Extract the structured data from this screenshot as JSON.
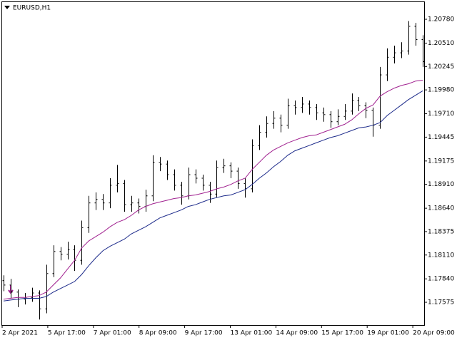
{
  "chart_data": {
    "type": "ohlc",
    "title": "EURUSD,H1",
    "ylim": [
      1.17317,
      1.20982
    ],
    "yticks": [
      {
        "value": 1.2078,
        "label": "1.20780"
      },
      {
        "value": 1.2051,
        "label": "1.20510"
      },
      1.20245,
      {
        "value": 1.1998,
        "label": "1.19980"
      },
      {
        "value": 1.1971,
        "label": "1.19710"
      },
      1.19445,
      1.19175,
      {
        "value": 1.1891,
        "label": "1.18910"
      },
      {
        "value": 1.1864,
        "label": "1.18640"
      },
      1.18375,
      {
        "value": 1.1811,
        "label": "1.18110"
      },
      {
        "value": 1.1784,
        "label": "1.17840"
      },
      1.17575
    ],
    "x_labels": [
      "2 Apr 2021",
      "5 Apr 17:00",
      "7 Apr 01:00",
      "8 Apr 09:00",
      "9 Apr 17:00",
      "13 Apr 01:00",
      "14 Apr 09:00",
      "15 Apr 17:00",
      "19 Apr 01:00",
      "20 Apr 09:00"
    ],
    "color": "#000000",
    "bars": [
      [
        1.1782,
        1.1788,
        1.177,
        1.1777
      ],
      [
        1.1777,
        1.1784,
        1.1762,
        1.1769
      ],
      [
        1.1769,
        1.1772,
        1.1752,
        1.1761
      ],
      [
        1.1761,
        1.1768,
        1.1755,
        1.1763
      ],
      [
        1.1763,
        1.1774,
        1.1758,
        1.1768
      ],
      [
        1.1768,
        1.1771,
        1.1738,
        1.175
      ],
      [
        1.175,
        1.18,
        1.1745,
        1.179
      ],
      [
        1.179,
        1.1822,
        1.1786,
        1.1815
      ],
      [
        1.1815,
        1.182,
        1.1805,
        1.1812
      ],
      [
        1.1812,
        1.1826,
        1.1806,
        1.1817
      ],
      [
        1.1817,
        1.1822,
        1.1793,
        1.1805
      ],
      [
        1.1805,
        1.185,
        1.18,
        1.1842
      ],
      [
        1.1842,
        1.1878,
        1.1836,
        1.187
      ],
      [
        1.187,
        1.1882,
        1.1862,
        1.1874
      ],
      [
        1.1874,
        1.188,
        1.1862,
        1.187
      ],
      [
        1.187,
        1.1898,
        1.1864,
        1.189
      ],
      [
        1.189,
        1.1913,
        1.1882,
        1.1892
      ],
      [
        1.1892,
        1.1896,
        1.186,
        1.1868
      ],
      [
        1.1868,
        1.1878,
        1.186,
        1.187
      ],
      [
        1.187,
        1.1875,
        1.1858,
        1.1866
      ],
      [
        1.1866,
        1.1885,
        1.186,
        1.1878
      ],
      [
        1.1878,
        1.1924,
        1.1872,
        1.1916
      ],
      [
        1.1916,
        1.1922,
        1.1906,
        1.1914
      ],
      [
        1.1914,
        1.1918,
        1.1896,
        1.1902
      ],
      [
        1.1902,
        1.1908,
        1.1884,
        1.189
      ],
      [
        1.189,
        1.1894,
        1.1868,
        1.1878
      ],
      [
        1.1878,
        1.191,
        1.1874,
        1.1902
      ],
      [
        1.1902,
        1.1908,
        1.1892,
        1.1898
      ],
      [
        1.1898,
        1.1902,
        1.1884,
        1.189
      ],
      [
        1.189,
        1.1894,
        1.187,
        1.188
      ],
      [
        1.188,
        1.1918,
        1.1876,
        1.191
      ],
      [
        1.191,
        1.192,
        1.1904,
        1.1912
      ],
      [
        1.1912,
        1.1916,
        1.1898,
        1.1906
      ],
      [
        1.1906,
        1.191,
        1.1886,
        1.1892
      ],
      [
        1.1892,
        1.1898,
        1.1876,
        1.1886
      ],
      [
        1.1886,
        1.1942,
        1.1882,
        1.1935
      ],
      [
        1.1935,
        1.1958,
        1.193,
        1.195
      ],
      [
        1.195,
        1.1968,
        1.1944,
        1.196
      ],
      [
        1.196,
        1.1974,
        1.1954,
        1.1966
      ],
      [
        1.1966,
        1.197,
        1.195,
        1.1958
      ],
      [
        1.1958,
        1.1988,
        1.1954,
        1.198
      ],
      [
        1.198,
        1.1986,
        1.197,
        1.1978
      ],
      [
        1.1978,
        1.199,
        1.1972,
        1.1982
      ],
      [
        1.1982,
        1.1986,
        1.197,
        1.1978
      ],
      [
        1.1978,
        1.1982,
        1.1964,
        1.1972
      ],
      [
        1.1972,
        1.1978,
        1.1962,
        1.197
      ],
      [
        1.197,
        1.1974,
        1.1955,
        1.1962
      ],
      [
        1.1962,
        1.1976,
        1.1958,
        1.1968
      ],
      [
        1.1968,
        1.1982,
        1.1964,
        1.1974
      ],
      [
        1.1974,
        1.1994,
        1.197,
        1.1986
      ],
      [
        1.1986,
        1.199,
        1.1974,
        1.198
      ],
      [
        1.198,
        1.1984,
        1.1966,
        1.1975
      ],
      [
        1.1975,
        1.1978,
        1.1945,
        1.1958
      ],
      [
        1.1958,
        1.2024,
        1.1954,
        1.2015
      ],
      [
        1.2015,
        1.2045,
        1.2008,
        1.2035
      ],
      [
        1.2035,
        1.2048,
        1.2028,
        1.204
      ],
      [
        1.204,
        1.2052,
        1.2034,
        1.2042
      ],
      [
        1.2042,
        1.2076,
        1.2038,
        1.207
      ],
      [
        1.207,
        1.2074,
        1.2048,
        1.2055
      ],
      [
        1.2055,
        1.206,
        1.2024,
        1.203
      ]
    ],
    "lines": [
      {
        "color": "#a0208f",
        "values": [
          1.1761,
          1.1762,
          1.1763,
          1.1763,
          1.1764,
          1.1765,
          1.1769,
          1.1777,
          1.1785,
          1.1795,
          1.1805,
          1.1819,
          1.1827,
          1.1832,
          1.1837,
          1.1843,
          1.1848,
          1.1851,
          1.1856,
          1.1862,
          1.1866,
          1.1869,
          1.1871,
          1.1873,
          1.1875,
          1.1876,
          1.1878,
          1.1879,
          1.1881,
          1.1883,
          1.1886,
          1.1888,
          1.1891,
          1.1895,
          1.1898,
          1.1908,
          1.1916,
          1.1924,
          1.193,
          1.1934,
          1.1938,
          1.1941,
          1.1944,
          1.1946,
          1.1947,
          1.195,
          1.1953,
          1.1956,
          1.1959,
          1.1964,
          1.1971,
          1.1977,
          1.1981,
          1.1991,
          1.1996,
          1.2,
          1.2003,
          1.2005,
          1.2008,
          1.2009
        ]
      },
      {
        "color": "#1c2a8a",
        "values": [
          1.1759,
          1.176,
          1.1761,
          1.1762,
          1.1762,
          1.1762,
          1.1764,
          1.1769,
          1.1773,
          1.1777,
          1.1781,
          1.1789,
          1.1799,
          1.1808,
          1.1816,
          1.1821,
          1.1825,
          1.1829,
          1.1835,
          1.1839,
          1.1843,
          1.1848,
          1.1853,
          1.1856,
          1.1859,
          1.1862,
          1.1866,
          1.1868,
          1.1871,
          1.1874,
          1.1876,
          1.1878,
          1.1879,
          1.1882,
          1.1885,
          1.1891,
          1.1898,
          1.1904,
          1.1911,
          1.1917,
          1.1924,
          1.1929,
          1.1932,
          1.1935,
          1.1938,
          1.1941,
          1.1944,
          1.1946,
          1.1949,
          1.1952,
          1.1955,
          1.1956,
          1.1958,
          1.1961,
          1.1969,
          1.1975,
          1.1981,
          1.1987,
          1.1992,
          1.1997
        ]
      }
    ]
  }
}
